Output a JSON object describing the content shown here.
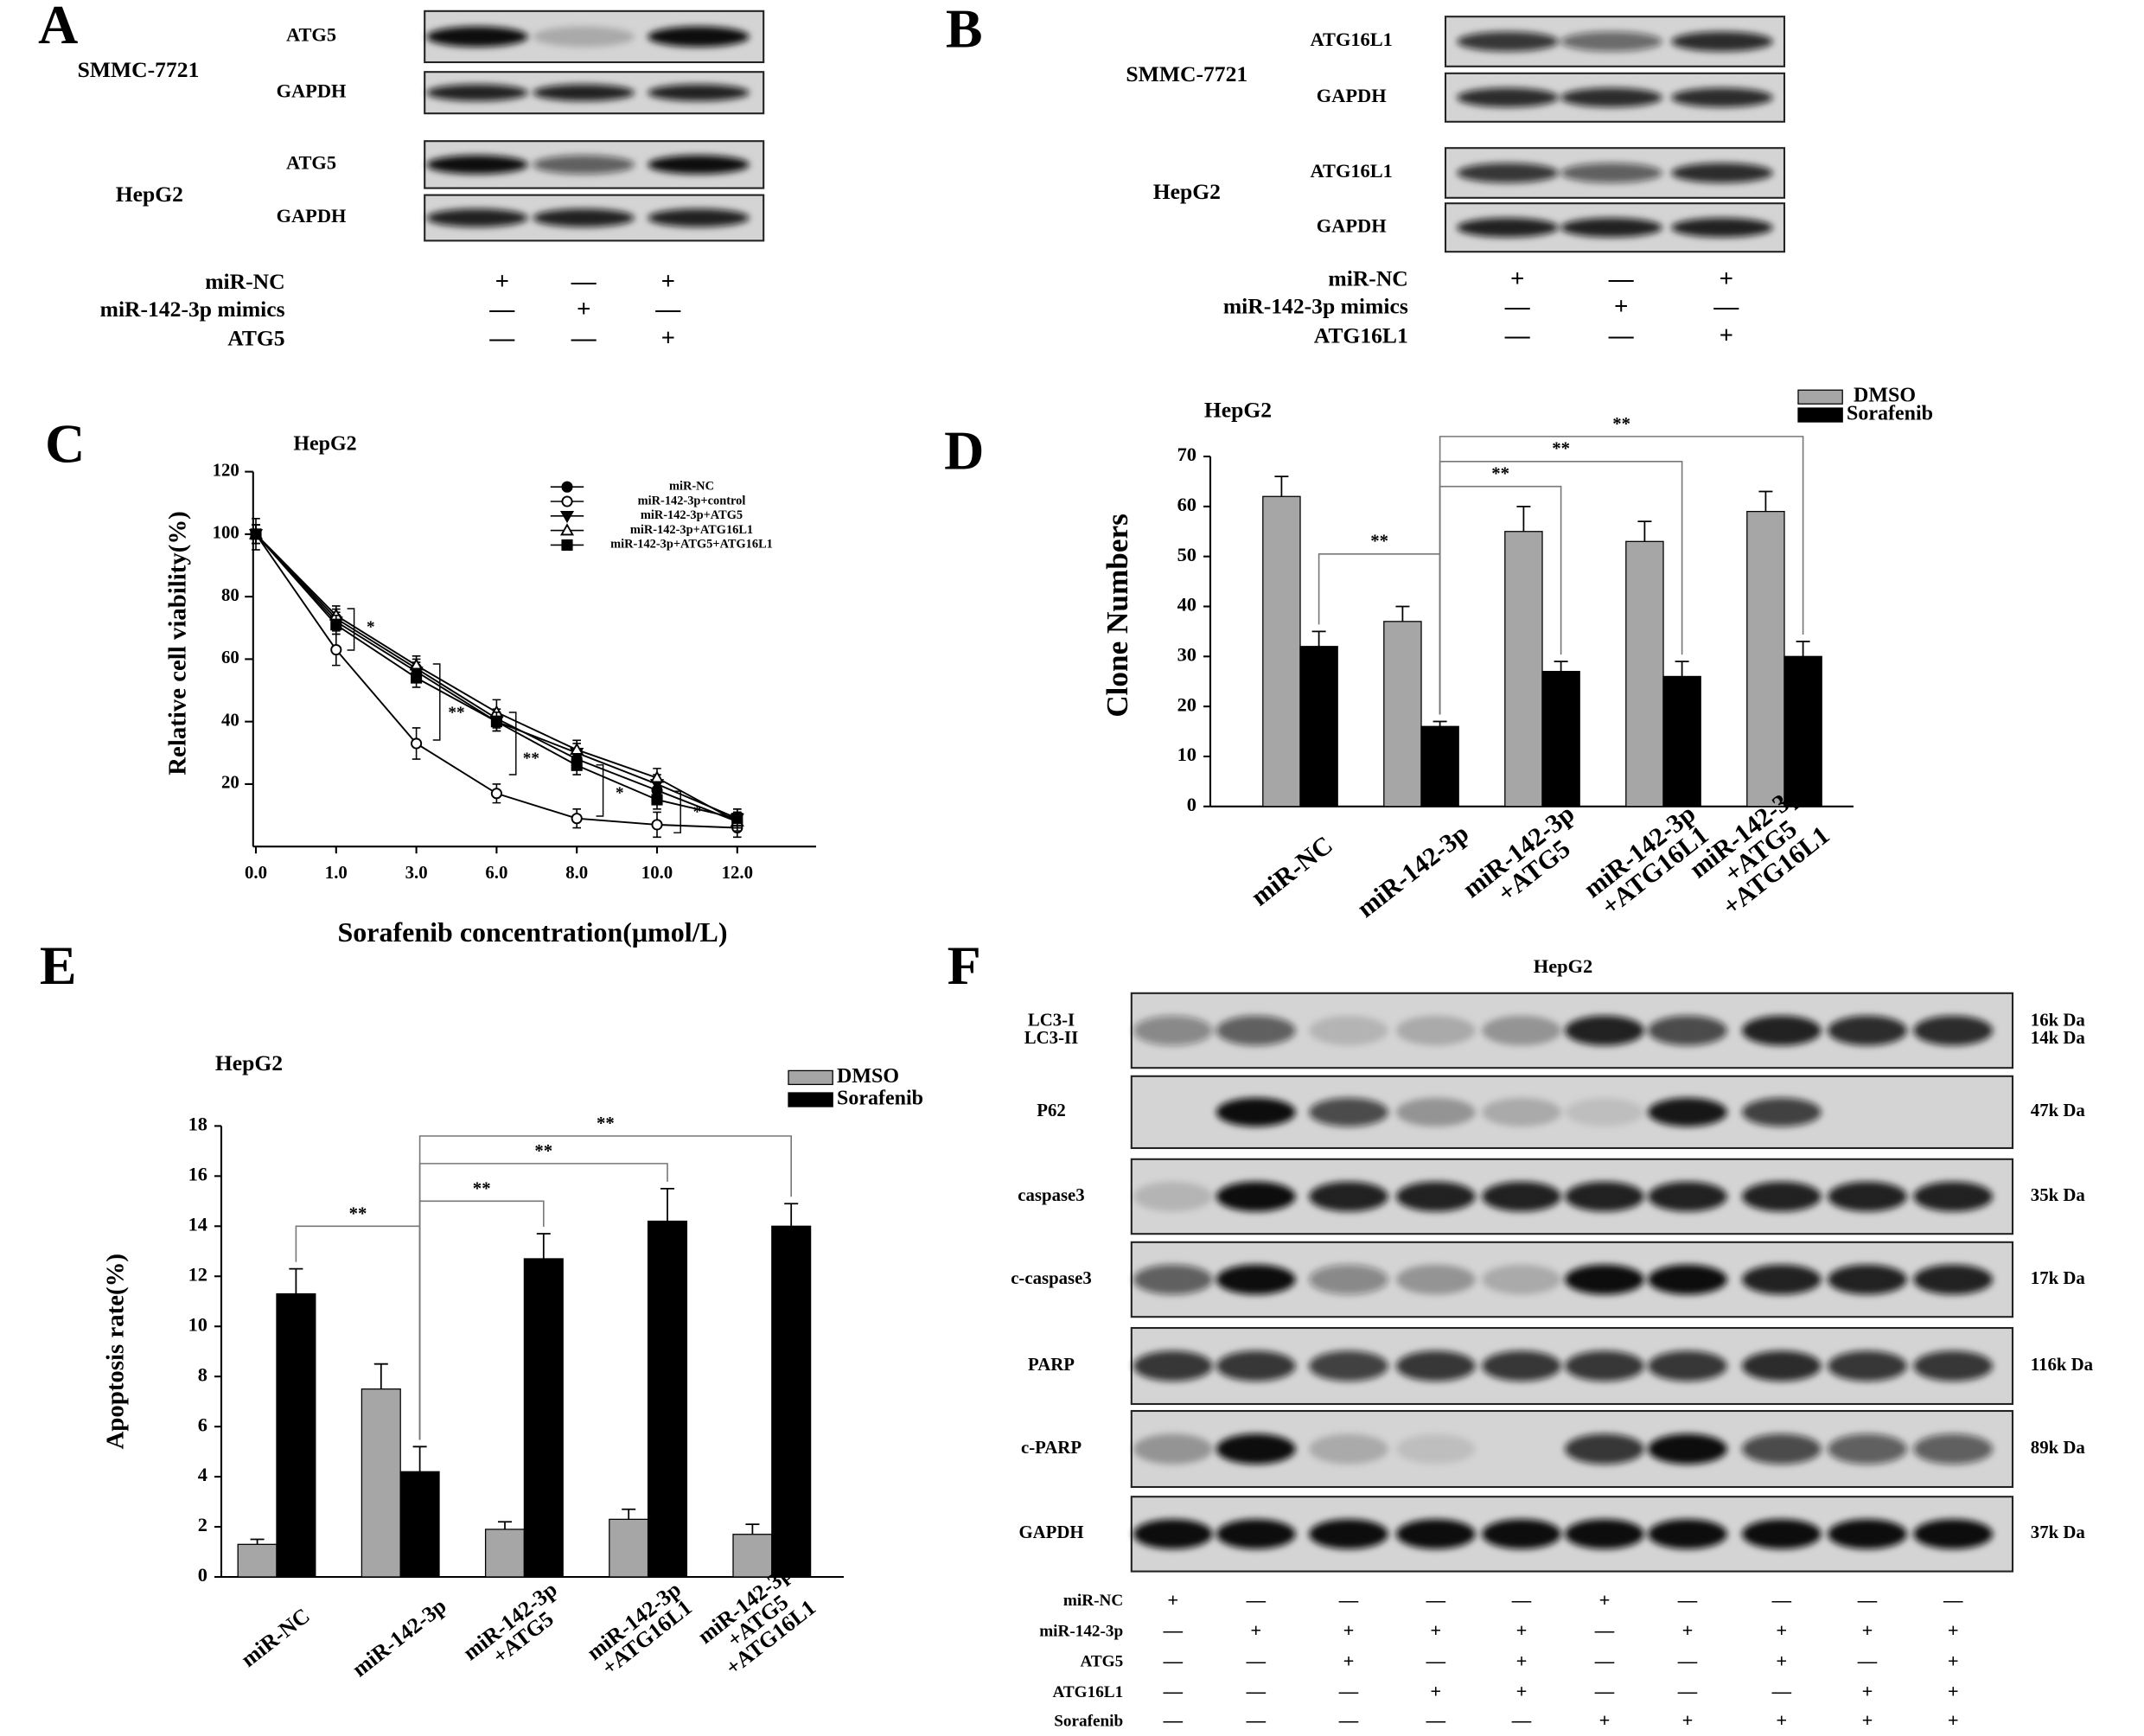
{
  "panel_a": {
    "letter": "A",
    "cell_lines": [
      "SMMC-7721",
      "HepG2"
    ],
    "bands": [
      "ATG5",
      "GAPDH",
      "ATG5",
      "GAPDH"
    ],
    "conditions": [
      {
        "name": "miR-NC",
        "signs": [
          "+",
          "—",
          "+"
        ]
      },
      {
        "name": "miR-142-3p mimics",
        "signs": [
          "—",
          "+",
          "—"
        ]
      },
      {
        "name": "ATG5",
        "signs": [
          "—",
          "—",
          "+"
        ]
      }
    ]
  },
  "panel_b": {
    "letter": "B",
    "cell_lines": [
      "SMMC-7721",
      "HepG2"
    ],
    "bands": [
      "ATG16L1",
      "GAPDH",
      "ATG16L1",
      "GAPDH"
    ],
    "conditions": [
      {
        "name": "miR-NC",
        "signs": [
          "+",
          "—",
          "+"
        ]
      },
      {
        "name": "miR-142-3p mimics",
        "signs": [
          "—",
          "+",
          "—"
        ]
      },
      {
        "name": "ATG16L1",
        "signs": [
          "—",
          "—",
          "+"
        ]
      }
    ]
  },
  "chart_data": [
    {
      "type": "line",
      "letter": "C",
      "title": "HepG2",
      "x_label": "Sorafenib concentration(μmol/L)",
      "y_label": "Relative cell viability(%)",
      "categories": [
        "0.0",
        "1.0",
        "3.0",
        "6.0",
        "8.0",
        "10.0",
        "12.0"
      ],
      "ylim": [
        0,
        120
      ],
      "yticks": [
        20,
        40,
        60,
        80,
        100,
        120
      ],
      "series": [
        {
          "name": "miR-NC",
          "color": "#000000",
          "marker": "circle-filled",
          "values": [
            100,
            73,
            57,
            41,
            28,
            18,
            8
          ],
          "errors": [
            3,
            3,
            3,
            3,
            3,
            3,
            3
          ]
        },
        {
          "name": "miR-142-3p+control",
          "color": "#000000",
          "marker": "circle-open",
          "values": [
            100,
            63,
            33,
            17,
            9,
            7,
            6
          ],
          "errors": [
            5,
            5,
            5,
            3,
            3,
            4,
            3
          ]
        },
        {
          "name": "miR-142-3p+ATG5",
          "color": "#000000",
          "marker": "triangle-down-filled",
          "values": [
            100,
            72,
            56,
            40,
            30,
            20,
            9
          ],
          "errors": [
            3,
            3,
            3,
            3,
            3,
            3,
            3
          ]
        },
        {
          "name": "miR-142-3p+ATG16L1",
          "color": "#000000",
          "marker": "triangle-up-open",
          "values": [
            100,
            74,
            58,
            43,
            31,
            22,
            8
          ],
          "errors": [
            3,
            3,
            3,
            4,
            3,
            3,
            3
          ]
        },
        {
          "name": "miR-142-3p+ATG5+ATG16L1",
          "color": "#000000",
          "marker": "square-filled",
          "values": [
            100,
            71,
            54,
            40,
            26,
            15,
            9
          ],
          "errors": [
            3,
            3,
            3,
            3,
            3,
            3,
            3
          ]
        }
      ],
      "annotations": [
        "*",
        "**",
        "**",
        "*",
        "*"
      ]
    },
    {
      "type": "bar",
      "letter": "D",
      "title": "HepG2",
      "y_label": "Clone Numbers",
      "categories": [
        "miR-NC",
        "miR-142-3p",
        "miR-142-3p\n+ATG5",
        "miR-142-3p\n+ATG16L1",
        "miR-142-3p\n+ATG5\n+ATG16L1"
      ],
      "ylim": [
        0,
        70
      ],
      "yticks": [
        0,
        10,
        20,
        30,
        40,
        50,
        60,
        70
      ],
      "series": [
        {
          "name": "DMSO",
          "color": "#a6a6a6",
          "values": [
            62,
            37,
            55,
            53,
            59
          ],
          "errors": [
            4,
            3,
            5,
            4,
            4
          ]
        },
        {
          "name": "Sorafenib",
          "color": "#000000",
          "values": [
            32,
            16,
            27,
            26,
            30
          ],
          "errors": [
            3,
            1,
            2,
            3,
            3
          ]
        }
      ],
      "annotations": [
        "**",
        "**",
        "**",
        "**"
      ]
    },
    {
      "type": "bar",
      "letter": "E",
      "title": "HepG2",
      "y_label": "Apoptosis rate(%)",
      "categories": [
        "miR-NC",
        "miR-142-3p",
        "miR-142-3p\n+ATG5",
        "miR-142-3p\n+ATG16L1",
        "miR-142-3p\n+ATG5\n+ATG16L1"
      ],
      "ylim": [
        0,
        18
      ],
      "yticks": [
        0,
        2,
        4,
        6,
        8,
        10,
        12,
        14,
        16,
        18
      ],
      "series": [
        {
          "name": "DMSO",
          "color": "#a6a6a6",
          "values": [
            1.3,
            7.5,
            1.9,
            2.3,
            1.7
          ],
          "errors": [
            0.2,
            1.0,
            0.3,
            0.4,
            0.4
          ]
        },
        {
          "name": "Sorafenib",
          "color": "#000000",
          "values": [
            11.3,
            4.2,
            12.7,
            14.2,
            14.0
          ],
          "errors": [
            1.0,
            1.0,
            1.0,
            1.3,
            0.9
          ]
        }
      ],
      "annotations": [
        "**",
        "**",
        "**",
        "**"
      ]
    }
  ],
  "panel_f": {
    "letter": "F",
    "title": "HepG2",
    "bands": [
      {
        "labels": [
          "LC3-I",
          "LC3-II"
        ],
        "sizes": [
          "16k Da",
          "14k Da"
        ]
      },
      {
        "labels": [
          "P62"
        ],
        "sizes": [
          "47k Da"
        ]
      },
      {
        "labels": [
          "caspase3"
        ],
        "sizes": [
          "35k Da"
        ]
      },
      {
        "labels": [
          "c-caspase3"
        ],
        "sizes": [
          "17k Da"
        ]
      },
      {
        "labels": [
          "PARP"
        ],
        "sizes": [
          "116k Da"
        ]
      },
      {
        "labels": [
          "c-PARP"
        ],
        "sizes": [
          "89k Da"
        ]
      },
      {
        "labels": [
          "GAPDH"
        ],
        "sizes": [
          "37k Da"
        ]
      }
    ],
    "conditions": [
      {
        "name": "miR-NC",
        "signs": [
          "+",
          "—",
          "—",
          "—",
          "—",
          "+",
          "—",
          "—",
          "—",
          "—"
        ]
      },
      {
        "name": "miR-142-3p",
        "signs": [
          "—",
          "+",
          "+",
          "+",
          "+",
          "—",
          "+",
          "+",
          "+",
          "+"
        ]
      },
      {
        "name": "ATG5",
        "signs": [
          "—",
          "—",
          "+",
          "—",
          "+",
          "—",
          "—",
          "+",
          "—",
          "+"
        ]
      },
      {
        "name": "ATG16L1",
        "signs": [
          "—",
          "—",
          "—",
          "+",
          "+",
          "—",
          "—",
          "—",
          "+",
          "+"
        ]
      },
      {
        "name": "Sorafenib",
        "signs": [
          "—",
          "—",
          "—",
          "—",
          "—",
          "+",
          "+",
          "+",
          "+",
          "+"
        ]
      }
    ]
  }
}
